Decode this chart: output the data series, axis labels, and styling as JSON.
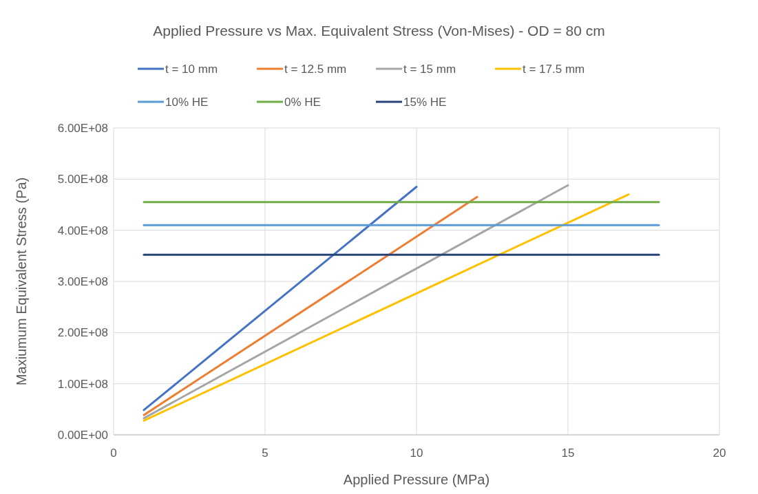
{
  "chart_data": {
    "type": "line",
    "title": "Applied Pressure vs Max. Equivalent Stress (Von-Mises) - OD = 80 cm",
    "xlabel": "Applied Pressure (MPa)",
    "ylabel": "Maxiumum Equivalent Stress (Pa)",
    "series": [
      {
        "name": "t = 10 mm",
        "color": "#4472c4",
        "x": [
          1,
          10
        ],
        "values": [
          48500000,
          485000000
        ]
      },
      {
        "name": "t = 12.5 mm",
        "color": "#ed7d31",
        "x": [
          1,
          12
        ],
        "values": [
          38800000,
          465000000
        ]
      },
      {
        "name": "t = 15 mm",
        "color": "#a5a5a5",
        "x": [
          1,
          15
        ],
        "values": [
          32500000,
          488000000
        ]
      },
      {
        "name": "t = 17.5 mm",
        "color": "#ffc000",
        "x": [
          1,
          17
        ],
        "values": [
          27700000,
          470000000
        ]
      },
      {
        "name": "10% HE",
        "color": "#5b9bd5",
        "x": [
          1,
          18
        ],
        "values": [
          410000000,
          410000000
        ]
      },
      {
        "name": "0% HE",
        "color": "#70ad47",
        "x": [
          1,
          18
        ],
        "values": [
          455000000,
          455000000
        ]
      },
      {
        "name": "15% HE",
        "color": "#264478",
        "x": [
          1,
          18
        ],
        "values": [
          352000000,
          352000000
        ]
      }
    ],
    "xlim": [
      0,
      20
    ],
    "xticks": [
      0,
      5,
      10,
      15,
      20
    ],
    "ylim": [
      0,
      600000000
    ],
    "yticks": [
      {
        "value": 0,
        "label": "0.00E+00"
      },
      {
        "value": 100000000,
        "label": "1.00E+08"
      },
      {
        "value": 200000000,
        "label": "2.00E+08"
      },
      {
        "value": 300000000,
        "label": "3.00E+08"
      },
      {
        "value": 400000000,
        "label": "4.00E+08"
      },
      {
        "value": 500000000,
        "label": "5.00E+08"
      },
      {
        "value": 600000000,
        "label": "6.00E+08"
      }
    ],
    "grid": true,
    "legend": "top",
    "marker": "none",
    "line_style": "solid"
  }
}
